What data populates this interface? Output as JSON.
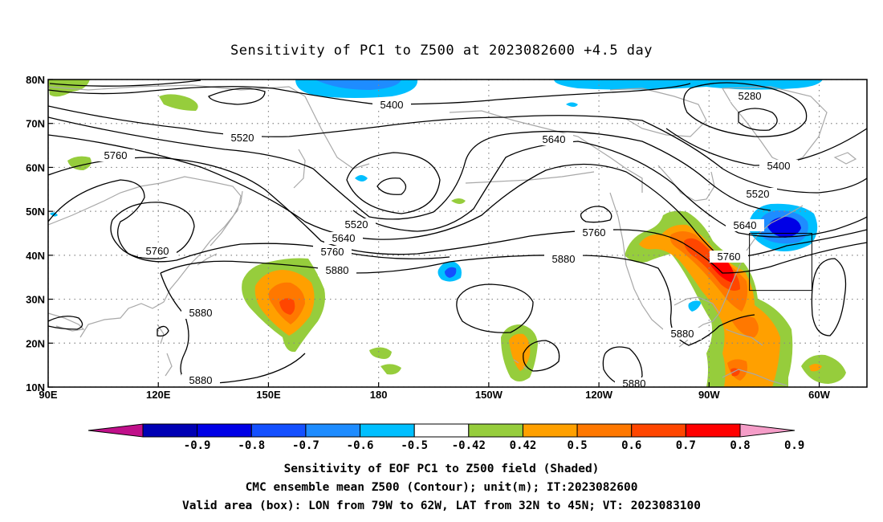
{
  "title": "Sensitivity of PC1 to Z500 at 2023082600 +4.5 day",
  "map": {
    "lon_range": [
      90,
      313
    ],
    "lat_range": [
      10,
      80
    ],
    "lat_ticks": [
      "80N",
      "70N",
      "60N",
      "50N",
      "40N",
      "30N",
      "20N",
      "10N"
    ],
    "lon_ticks": [
      "90E",
      "120E",
      "150E",
      "180",
      "150W",
      "120W",
      "90W",
      "60W"
    ],
    "grid": "dotted",
    "valid_box": {
      "lon_w": -79,
      "lon_e": -62,
      "lat_s": 32,
      "lat_n": 45
    }
  },
  "contour_labels": [
    "5400",
    "5520",
    "5280",
    "5640",
    "5760",
    "5400",
    "5520",
    "5760",
    "5640",
    "5520",
    "5640",
    "5760",
    "5880",
    "5760",
    "5880",
    "5880",
    "5760",
    "5880",
    "5880",
    "5880"
  ],
  "colorbar": {
    "levels": [
      "-0.9",
      "-0.8",
      "-0.7",
      "-0.6",
      "-0.5",
      "-0.42",
      "0.42",
      "0.5",
      "0.6",
      "0.7",
      "0.8",
      "0.9"
    ],
    "colors": [
      "#c0108a",
      "#0000b4",
      "#0000e6",
      "#1450ff",
      "#1e8cff",
      "#00bfff",
      "#ffffff",
      "#96cd3c",
      "#ffa000",
      "#ff7800",
      "#ff4600",
      "#ff0000",
      "#f59dc8"
    ]
  },
  "footer": {
    "line1": "Sensitivity of EOF PC1 to Z500 field (Shaded)",
    "line2": "CMC ensemble mean Z500 (Contour); unit(m); IT:2023082600",
    "line3": "Valid area (box): LON from 79W to 62W, LAT from 32N to 45N; VT: 2023083100"
  }
}
